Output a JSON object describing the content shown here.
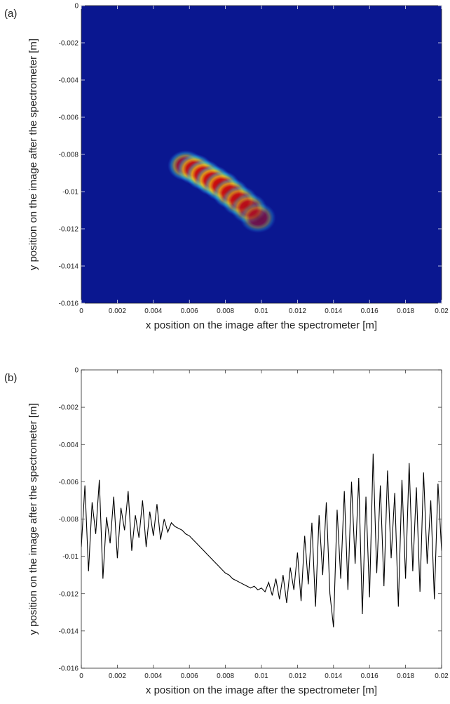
{
  "chart_data": [
    {
      "type": "density",
      "panel_label": "(a)",
      "xlabel": "x position on the image after the spectrometer [m]",
      "ylabel": "y position on the image after the spectrometer [m]",
      "background": "#0a1790",
      "x": [
        0.0058,
        0.0063,
        0.0068,
        0.0073,
        0.0078,
        0.0083,
        0.0088,
        0.0093,
        0.0098
      ],
      "y": [
        -0.0086,
        -0.0088,
        -0.0091,
        -0.0094,
        -0.0097,
        -0.0101,
        -0.0105,
        -0.0109,
        -0.0114
      ],
      "values": [
        0.8,
        0.95,
        1,
        1,
        0.95,
        0.9,
        0.8,
        0.7,
        0.55
      ],
      "xlim": [
        0,
        0.02
      ],
      "xticks": [
        0,
        0.002,
        0.004,
        0.006,
        0.008,
        0.01,
        0.012,
        0.014,
        0.016,
        0.018,
        0.02
      ],
      "ylim": [
        -0.016,
        0
      ],
      "yticks": [
        0,
        -0.002,
        -0.004,
        -0.006,
        -0.008,
        -0.01,
        -0.012,
        -0.014,
        -0.016
      ]
    },
    {
      "type": "line",
      "panel_label": "(b)",
      "xlabel": "x position on the image after the spectrometer [m]",
      "ylabel": "y position on the image after the spectrometer [m]",
      "color": "#000000",
      "x": [
        0,
        0.0002,
        0.0004,
        0.0006,
        0.0008,
        0.001,
        0.0012,
        0.0014,
        0.0016,
        0.0018,
        0.002,
        0.0022,
        0.0024,
        0.0026,
        0.0028,
        0.003,
        0.0032,
        0.0034,
        0.0036,
        0.0038,
        0.004,
        0.0042,
        0.0044,
        0.0046,
        0.0048,
        0.005,
        0.0052,
        0.0054,
        0.0056,
        0.0058,
        0.006,
        0.0062,
        0.0064,
        0.0066,
        0.0068,
        0.007,
        0.0072,
        0.0074,
        0.0076,
        0.0078,
        0.008,
        0.0082,
        0.0084,
        0.0086,
        0.0088,
        0.009,
        0.0092,
        0.0094,
        0.0096,
        0.0098,
        0.01,
        0.0102,
        0.0104,
        0.0106,
        0.0108,
        0.011,
        0.0112,
        0.0114,
        0.0116,
        0.0118,
        0.012,
        0.0122,
        0.0124,
        0.0126,
        0.0128,
        0.013,
        0.0132,
        0.0134,
        0.0136,
        0.0138,
        0.014,
        0.0142,
        0.0144,
        0.0146,
        0.0148,
        0.015,
        0.0152,
        0.0154,
        0.0156,
        0.0158,
        0.016,
        0.0162,
        0.0164,
        0.0166,
        0.0168,
        0.017,
        0.0172,
        0.0174,
        0.0176,
        0.0178,
        0.018,
        0.0182,
        0.0184,
        0.0186,
        0.0188,
        0.019,
        0.0192,
        0.0194,
        0.0196,
        0.0198,
        0.02
      ],
      "values": [
        -0.0095,
        -0.0062,
        -0.0108,
        -0.0071,
        -0.0088,
        -0.0059,
        -0.0112,
        -0.0079,
        -0.0093,
        -0.0068,
        -0.0101,
        -0.0074,
        -0.0086,
        -0.0065,
        -0.0097,
        -0.0078,
        -0.009,
        -0.007,
        -0.0095,
        -0.0076,
        -0.0089,
        -0.0072,
        -0.0091,
        -0.008,
        -0.0087,
        -0.0082,
        -0.0084,
        -0.0085,
        -0.0086,
        -0.0088,
        -0.0089,
        -0.0091,
        -0.0093,
        -0.0095,
        -0.0097,
        -0.0099,
        -0.0101,
        -0.0103,
        -0.0105,
        -0.0107,
        -0.0109,
        -0.011,
        -0.0112,
        -0.0113,
        -0.0114,
        -0.0115,
        -0.0116,
        -0.0117,
        -0.0116,
        -0.0118,
        -0.0117,
        -0.0119,
        -0.0114,
        -0.0121,
        -0.0112,
        -0.0123,
        -0.011,
        -0.0125,
        -0.0106,
        -0.0118,
        -0.0098,
        -0.0124,
        -0.0089,
        -0.0115,
        -0.0082,
        -0.0127,
        -0.0078,
        -0.011,
        -0.0071,
        -0.012,
        -0.0138,
        -0.0075,
        -0.0112,
        -0.0065,
        -0.0118,
        -0.006,
        -0.0104,
        -0.0058,
        -0.0131,
        -0.0068,
        -0.0122,
        -0.0045,
        -0.0109,
        -0.0062,
        -0.0116,
        -0.0054,
        -0.0101,
        -0.0066,
        -0.0127,
        -0.0059,
        -0.0112,
        -0.005,
        -0.0108,
        -0.0063,
        -0.0119,
        -0.0055,
        -0.0104,
        -0.007,
        -0.0123,
        -0.0061,
        -0.0097
      ],
      "xlim": [
        0,
        0.02
      ],
      "xticks": [
        0,
        0.002,
        0.004,
        0.006,
        0.008,
        0.01,
        0.012,
        0.014,
        0.016,
        0.018,
        0.02
      ],
      "ylim": [
        -0.016,
        0
      ],
      "yticks": [
        0,
        -0.002,
        -0.004,
        -0.006,
        -0.008,
        -0.01,
        -0.012,
        -0.014,
        -0.016
      ]
    }
  ]
}
